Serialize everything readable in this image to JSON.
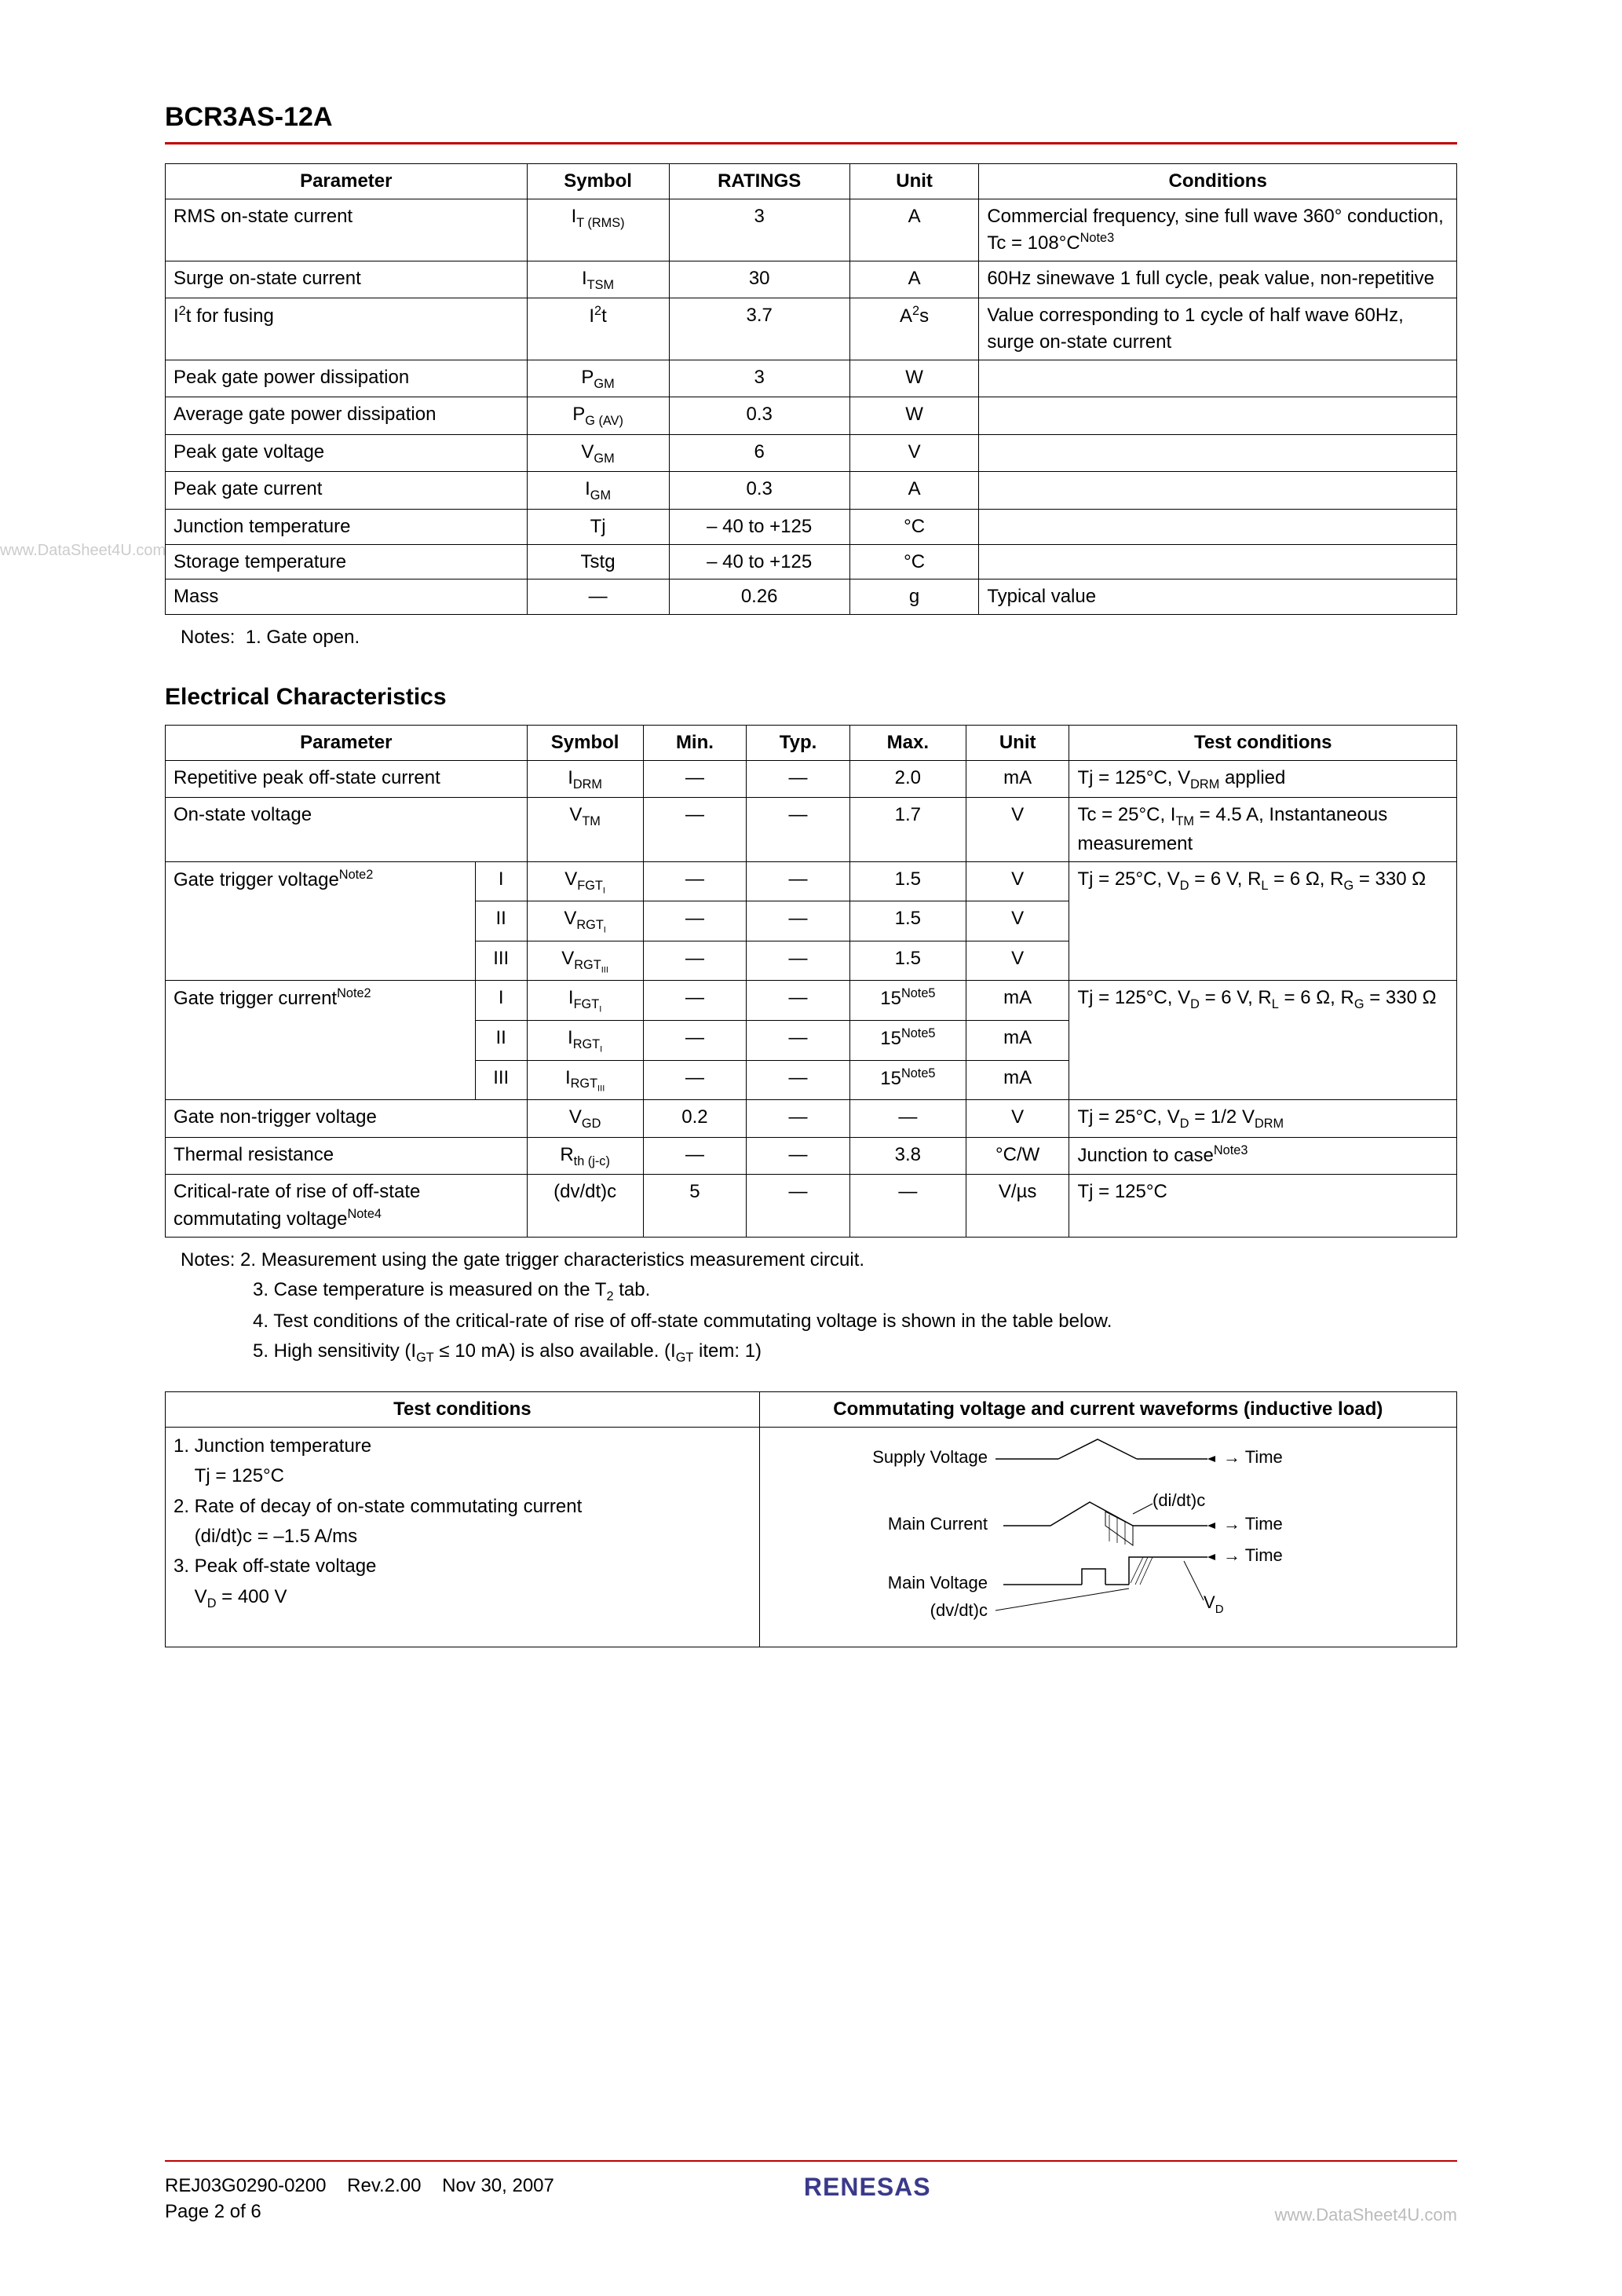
{
  "header": {
    "part_number": "BCR3AS-12A"
  },
  "watermark_left": "www.DataSheet4U.com",
  "table1": {
    "headers": [
      "Parameter",
      "Symbol",
      "RATINGS",
      "Unit",
      "Conditions"
    ],
    "col_widths": [
      "28%",
      "11%",
      "14%",
      "10%",
      "37%"
    ],
    "rows": [
      {
        "p": "RMS on-state current",
        "sym": "I<sub>T (RMS)</sub>",
        "r": "3",
        "u": "A",
        "c": "Commercial frequency, sine full wave 360° conduction, Tc = 108°C<sup>Note3</sup>"
      },
      {
        "p": "Surge on-state current",
        "sym": "I<sub>TSM</sub>",
        "r": "30",
        "u": "A",
        "c": "60Hz sinewave 1 full cycle, peak value, non-repetitive"
      },
      {
        "p": "I<sup>2</sup>t for fusing",
        "sym": "I<sup>2</sup>t",
        "r": "3.7",
        "u": "A<sup>2</sup>s",
        "c": "Value corresponding to 1 cycle of half wave 60Hz, surge on-state current"
      },
      {
        "p": "Peak gate power dissipation",
        "sym": "P<sub>GM</sub>",
        "r": "3",
        "u": "W",
        "c": ""
      },
      {
        "p": "Average gate power dissipation",
        "sym": "P<sub>G (AV)</sub>",
        "r": "0.3",
        "u": "W",
        "c": ""
      },
      {
        "p": "Peak gate voltage",
        "sym": "V<sub>GM</sub>",
        "r": "6",
        "u": "V",
        "c": ""
      },
      {
        "p": "Peak gate current",
        "sym": "I<sub>GM</sub>",
        "r": "0.3",
        "u": "A",
        "c": ""
      },
      {
        "p": "Junction temperature",
        "sym": "Tj",
        "r": "– 40 to +125",
        "u": "°C",
        "c": ""
      },
      {
        "p": "Storage temperature",
        "sym": "Tstg",
        "r": "– 40 to +125",
        "u": "°C",
        "c": ""
      },
      {
        "p": "Mass",
        "sym": "—",
        "r": "0.26",
        "u": "g",
        "c": "Typical value"
      }
    ]
  },
  "notes1": {
    "label": "Notes:",
    "items": [
      "1.  Gate open."
    ]
  },
  "elec_title": "Electrical Characteristics",
  "table2": {
    "headers": [
      "Parameter",
      "Symbol",
      "Min.",
      "Typ.",
      "Max.",
      "Unit",
      "Test conditions"
    ],
    "rows": [
      {
        "p": "Repetitive peak off-state current",
        "mode": null,
        "sym": "I<sub>DRM</sub>",
        "min": "—",
        "typ": "—",
        "max": "2.0",
        "u": "mA",
        "tc": "Tj = 125°C, V<sub>DRM</sub> applied",
        "prow": 1,
        "trow": 1
      },
      {
        "p": "On-state voltage",
        "mode": null,
        "sym": "V<sub>TM</sub>",
        "min": "—",
        "typ": "—",
        "max": "1.7",
        "u": "V",
        "tc": "Tc = 25°C, I<sub>TM</sub> = 4.5 A, Instantaneous measurement",
        "prow": 1,
        "trow": 1
      },
      {
        "p": "Gate trigger voltage<sup>Note2</sup>",
        "mode": "I",
        "sym": "V<sub>FGT<sub>I</sub></sub>",
        "min": "—",
        "typ": "—",
        "max": "1.5",
        "u": "V",
        "tc": "Tj = 25°C, V<sub>D</sub> = 6 V, R<sub>L</sub> = 6 Ω, R<sub>G</sub> = 330 Ω",
        "prow": 3,
        "trow": 3
      },
      {
        "p": null,
        "mode": "II",
        "sym": "V<sub>RGT<sub>I</sub></sub>",
        "min": "—",
        "typ": "—",
        "max": "1.5",
        "u": "V",
        "tc": null
      },
      {
        "p": null,
        "mode": "III",
        "sym": "V<sub>RGT<sub>III</sub></sub>",
        "min": "—",
        "typ": "—",
        "max": "1.5",
        "u": "V",
        "tc": null
      },
      {
        "p": "Gate trigger current<sup>Note2</sup>",
        "mode": "I",
        "sym": "I<sub>FGT<sub>I</sub></sub>",
        "min": "—",
        "typ": "—",
        "max": "15<sup>Note5</sup>",
        "u": "mA",
        "tc": "Tj = 125°C, V<sub>D</sub> = 6 V, R<sub>L</sub> = 6 Ω, R<sub>G</sub> = 330 Ω",
        "prow": 3,
        "trow": 3
      },
      {
        "p": null,
        "mode": "II",
        "sym": "I<sub>RGT<sub>I</sub></sub>",
        "min": "—",
        "typ": "—",
        "max": "15<sup>Note5</sup>",
        "u": "mA",
        "tc": null
      },
      {
        "p": null,
        "mode": "III",
        "sym": "I<sub>RGT<sub>III</sub></sub>",
        "min": "—",
        "typ": "—",
        "max": "15<sup>Note5</sup>",
        "u": "mA",
        "tc": null
      },
      {
        "p": "Gate non-trigger voltage",
        "mode": null,
        "sym": "V<sub>GD</sub>",
        "min": "0.2",
        "typ": "—",
        "max": "—",
        "u": "V",
        "tc": "Tj = 25°C, V<sub>D</sub> = 1/2 V<sub>DRM</sub>",
        "prow": 1,
        "trow": 1
      },
      {
        "p": "Thermal resistance",
        "mode": null,
        "sym": "R<sub>th (j-c)</sub>",
        "min": "—",
        "typ": "—",
        "max": "3.8",
        "u": "°C/W",
        "tc": "Junction to case<sup>Note3</sup>",
        "prow": 1,
        "trow": 1
      },
      {
        "p": "Critical-rate of rise of off-state commutating voltage<sup>Note4</sup>",
        "mode": null,
        "sym": "(dv/dt)c",
        "min": "5",
        "typ": "—",
        "max": "—",
        "u": "V/µs",
        "tc": "Tj = 125°C",
        "prow": 1,
        "trow": 1
      }
    ]
  },
  "notes2": {
    "label": "Notes:",
    "items": [
      "2.  Measurement using the gate trigger characteristics measurement circuit.",
      "3.  Case temperature is measured on the T<sub>2</sub> tab.",
      "4.  Test conditions of the critical-rate of rise of off-state commutating voltage is shown in the table below.",
      "5.  High sensitivity (I<sub>GT</sub> ≤ 10 mA) is also available. (I<sub>GT</sub> item: 1)"
    ]
  },
  "table3": {
    "h1": "Test conditions",
    "h2": "Commutating voltage and current waveforms (inductive load)",
    "tc_lines": [
      "1. Junction temperature",
      "&nbsp;&nbsp;&nbsp;&nbsp;Tj = 125°C",
      "2. Rate of decay of on-state commutating current",
      "&nbsp;&nbsp;&nbsp;&nbsp;(di/dt)c = –1.5 A/ms",
      "3. Peak off-state voltage",
      "&nbsp;&nbsp;&nbsp;&nbsp;V<sub>D</sub> = 400 V"
    ],
    "wave_labels": {
      "supply": "Supply Voltage",
      "main_i": "Main Current",
      "main_v": "Main Voltage",
      "didt": "(di/dt)c",
      "dvdt": "(dv/dt)c",
      "time": "Time",
      "vd": "V<sub>D</sub>"
    }
  },
  "footer": {
    "doc": "REJ03G0290-0200",
    "rev": "Rev.2.00",
    "date": "Nov 30, 2007",
    "page": "Page 2 of 6",
    "brand": "RENESAS",
    "right": "www.DataSheet4U.com"
  },
  "colors": {
    "red": "#c00000",
    "text": "#000000",
    "watermark": "#cccccc",
    "brand": "#3a3a8a"
  }
}
